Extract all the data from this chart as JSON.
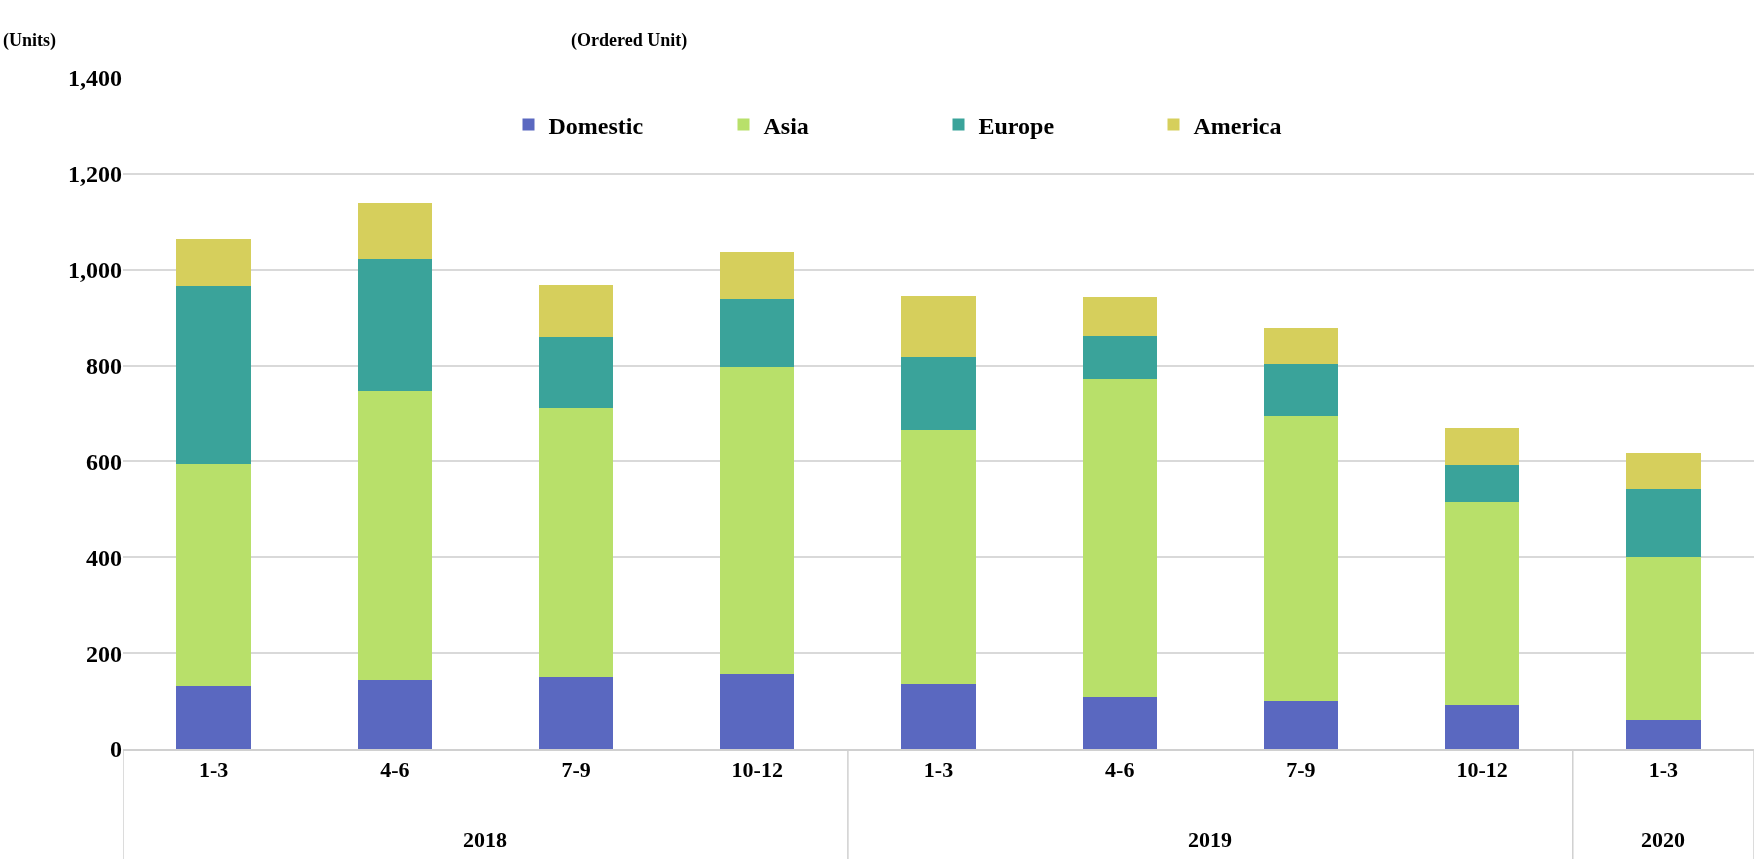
{
  "chart_data": {
    "type": "bar",
    "stacked": true,
    "subtitle": "(Ordered Unit)",
    "ylabel": "(Units)",
    "categories": [
      "1-3",
      "4-6",
      "7-9",
      "10-12",
      "1-3",
      "4-6",
      "7-9",
      "10-12",
      "1-3"
    ],
    "series": [
      {
        "name": "Domestic",
        "color": "#5a68c0",
        "values": [
          131,
          145,
          150,
          157,
          136,
          108,
          101,
          91,
          61
        ]
      },
      {
        "name": "Asia",
        "color": "#b8e06a",
        "values": [
          464,
          602,
          562,
          641,
          529,
          665,
          594,
          424,
          339
        ]
      },
      {
        "name": "Europe",
        "color": "#3aa39a",
        "values": [
          372,
          276,
          147,
          141,
          152,
          88,
          108,
          77,
          143
        ]
      },
      {
        "name": "America",
        "color": "#d6cf5c",
        "values": [
          98,
          117,
          110,
          98,
          129,
          82,
          75,
          78,
          75
        ]
      }
    ],
    "annotations": [
      "2018",
      "2019",
      "2020"
    ],
    "ylim": [
      0,
      1400
    ],
    "yticks": [
      0,
      {
        "value": 200,
        "label": "200"
      },
      {
        "value": 400,
        "label": "400"
      },
      {
        "value": 600,
        "label": "600"
      },
      {
        "value": 800,
        "label": "800"
      },
      {
        "value": 1000,
        "label": "1,000"
      },
      {
        "value": 1200,
        "label": "1,200"
      },
      {
        "value": 1400,
        "label": "1,400"
      }
    ],
    "grid": "y",
    "legend": "top"
  }
}
